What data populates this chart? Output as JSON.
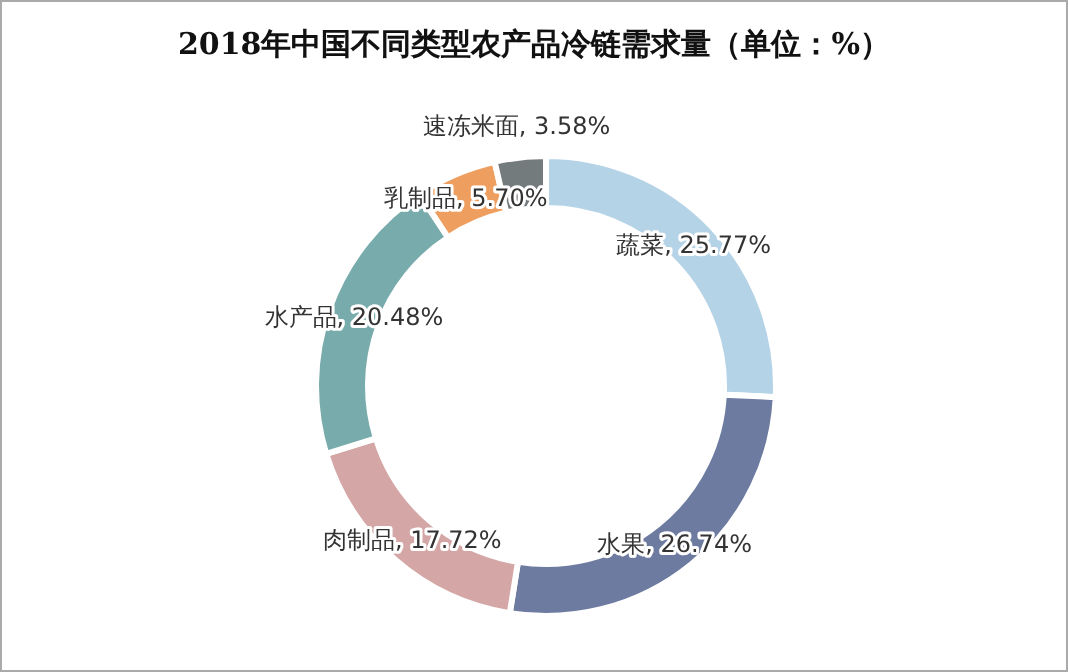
{
  "chart_data": {
    "type": "donut",
    "title": "2018年中国不同类型农产品冷链需求量（单位：%）",
    "categories": [
      "蔬菜",
      "水果",
      "肉制品",
      "水产品",
      "乳制品",
      "速冻米面"
    ],
    "values": [
      25.77,
      26.74,
      17.72,
      20.48,
      5.7,
      3.58
    ],
    "colors": [
      "#b5d3e7",
      "#6e7ba1",
      "#d4a6a6",
      "#78abab",
      "#ee9f5f",
      "#747b7d"
    ],
    "value_labels": [
      "25.77%",
      "26.74%",
      "17.72%",
      "20.48%",
      "5.70%",
      "3.58%"
    ],
    "legend": false
  }
}
